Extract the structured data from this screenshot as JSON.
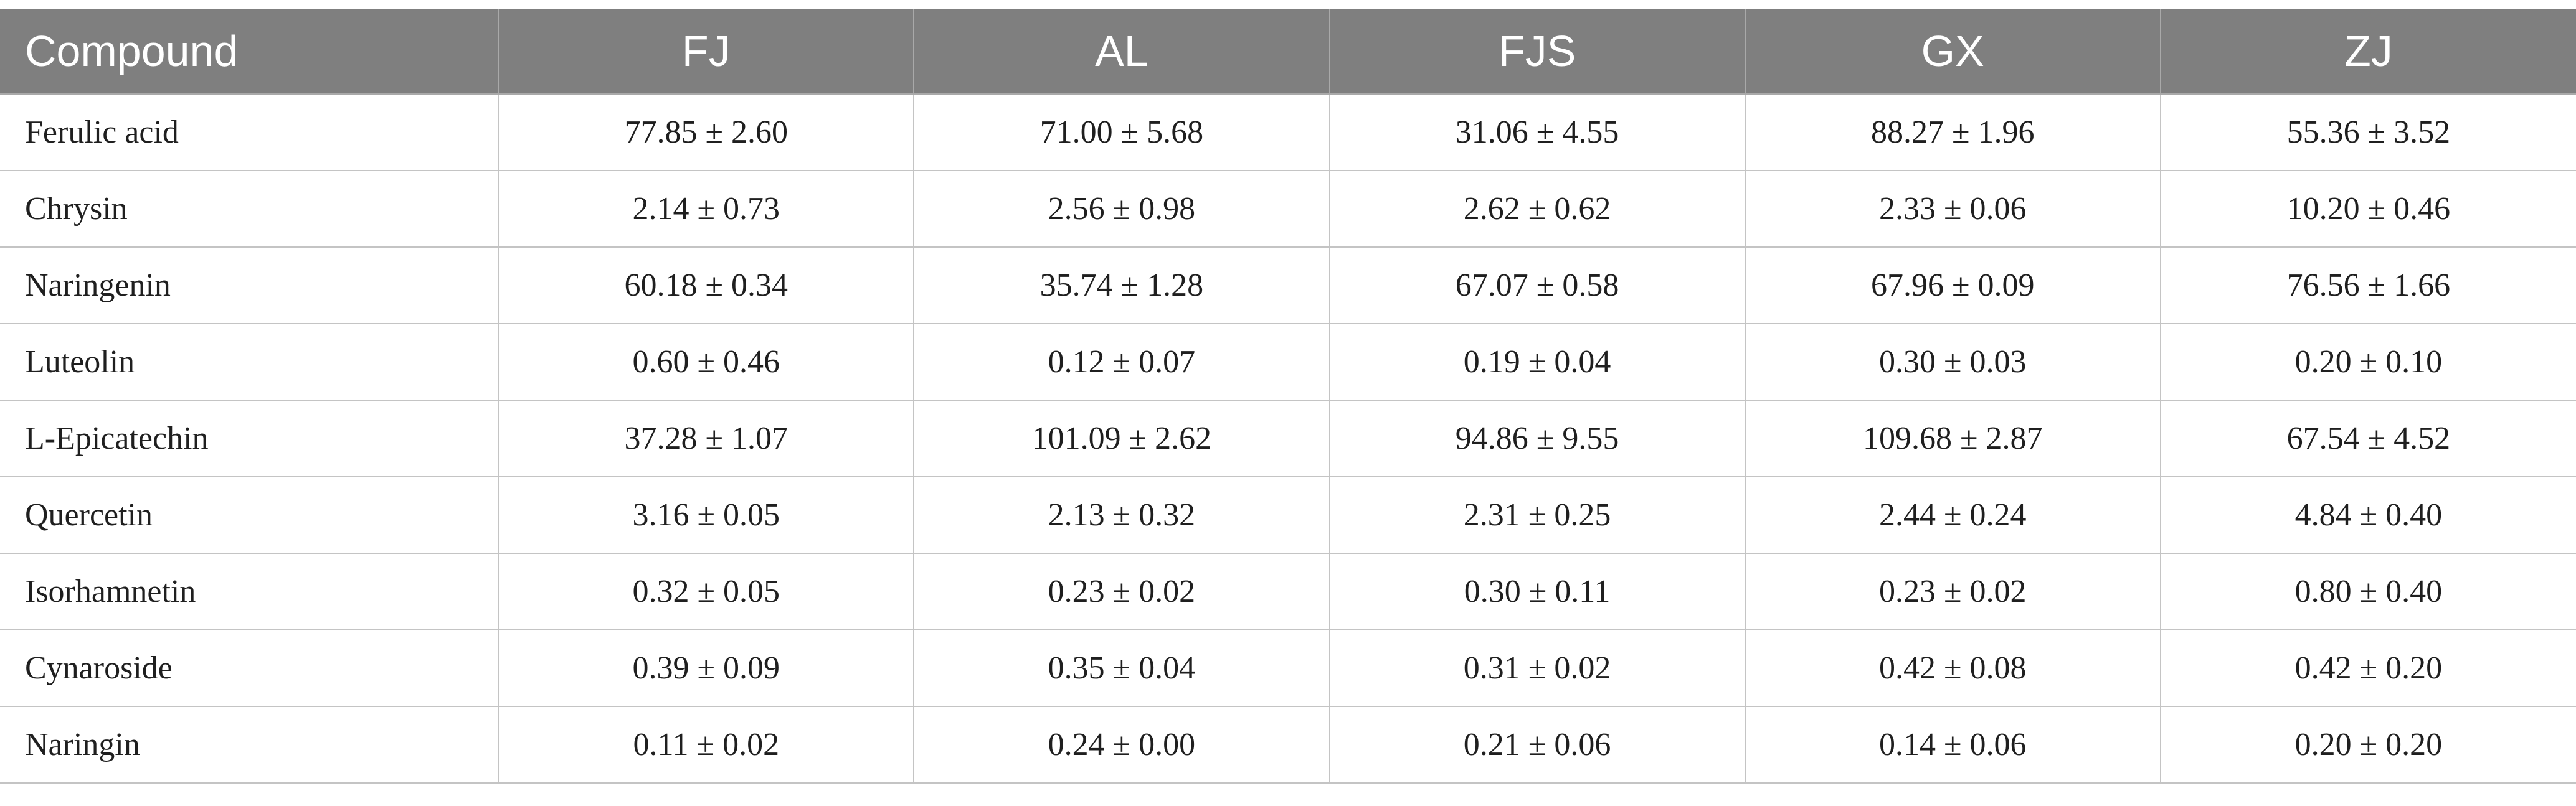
{
  "table": {
    "headers": [
      "Compound",
      "FJ",
      "AL",
      "FJS",
      "GX",
      "ZJ"
    ],
    "rows": [
      [
        "Ferulic acid",
        "77.85 ± 2.60",
        "71.00 ± 5.68",
        "31.06 ± 4.55",
        "88.27 ± 1.96",
        "55.36 ± 3.52"
      ],
      [
        "Chrysin",
        "2.14 ± 0.73",
        "2.56 ± 0.98",
        "2.62 ± 0.62",
        "2.33 ± 0.06",
        "10.20 ± 0.46"
      ],
      [
        "Naringenin",
        "60.18 ± 0.34",
        "35.74 ± 1.28",
        "67.07 ± 0.58",
        "67.96 ± 0.09",
        "76.56 ± 1.66"
      ],
      [
        "Luteolin",
        "0.60 ± 0.46",
        "0.12 ± 0.07",
        "0.19 ± 0.04",
        "0.30 ± 0.03",
        "0.20 ± 0.10"
      ],
      [
        "L-Epicatechin",
        "37.28 ± 1.07",
        "101.09 ± 2.62",
        "94.86 ± 9.55",
        "109.68 ± 2.87",
        "67.54 ± 4.52"
      ],
      [
        "Quercetin",
        "3.16 ± 0.05",
        "2.13 ± 0.32",
        "2.31 ± 0.25",
        "2.44 ± 0.24",
        "4.84 ± 0.40"
      ],
      [
        "Isorhamnetin",
        "0.32 ± 0.05",
        "0.23 ± 0.02",
        "0.30 ± 0.11",
        "0.23 ± 0.02",
        "0.80 ± 0.40"
      ],
      [
        "Cynaroside",
        "0.39 ± 0.09",
        "0.35 ± 0.04",
        "0.31 ± 0.02",
        "0.42 ± 0.08",
        "0.42 ± 0.20"
      ],
      [
        "Naringin",
        "0.11 ± 0.02",
        "0.24 ± 0.00",
        "0.21 ± 0.06",
        "0.14 ± 0.06",
        "0.20 ± 0.20"
      ]
    ]
  },
  "colors": {
    "header_background": "#7f7f7f",
    "header_text": "#ffffff",
    "grid_line": "#c4c4c4"
  }
}
